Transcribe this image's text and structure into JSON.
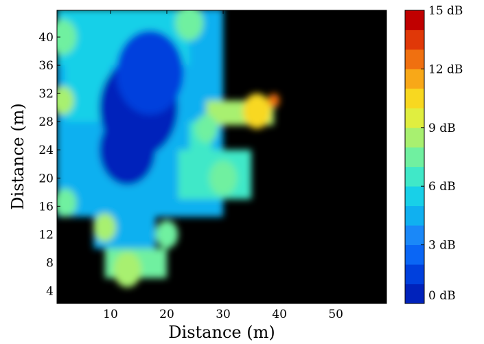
{
  "chart_data": {
    "type": "heatmap",
    "title": "",
    "xlabel": "Distance (m)",
    "ylabel": "Distance (m)",
    "xlim": [
      0.5,
      59
    ],
    "ylim": [
      2.2,
      43.8
    ],
    "xticks": [
      10,
      20,
      30,
      40,
      50
    ],
    "yticks": [
      4,
      8,
      12,
      16,
      20,
      24,
      28,
      32,
      36,
      40
    ],
    "background_color": "#000000",
    "colorbar": {
      "min": 0,
      "max": 15,
      "unit": "dB",
      "levels": 15,
      "tick_values": [
        0,
        3,
        6,
        9,
        12,
        15
      ],
      "tick_labels": [
        "0 dB",
        "3 dB",
        "6 dB",
        "9 dB",
        "12 dB",
        "15 dB"
      ],
      "colors": [
        "#0022bb",
        "#0040dd",
        "#0a66f5",
        "#1a88f8",
        "#10b0f0",
        "#18d0e8",
        "#40e8c8",
        "#70f0a0",
        "#a8f070",
        "#e0ee40",
        "#f8d820",
        "#f8a818",
        "#f07010",
        "#e03808",
        "#c00000"
      ]
    },
    "coverage_regions_m": [
      {
        "x": [
          0.5,
          30
        ],
        "y": [
          14.5,
          44
        ],
        "value": 4
      },
      {
        "x": [
          0.5,
          24
        ],
        "y": [
          36,
          44
        ],
        "value": 5
      },
      {
        "x": [
          2,
          10
        ],
        "y": [
          28,
          40
        ],
        "value": 5
      },
      {
        "x": [
          7,
          18
        ],
        "y": [
          10,
          17
        ],
        "value": 4
      },
      {
        "x": [
          9,
          20
        ],
        "y": [
          5.8,
          10
        ],
        "value": 7
      },
      {
        "x": [
          24,
          28
        ],
        "y": [
          22,
          28
        ],
        "value": 6
      },
      {
        "x": [
          27,
          39
        ],
        "y": [
          27.5,
          31
        ],
        "value": 9
      },
      {
        "x": [
          22,
          35
        ],
        "y": [
          17,
          24
        ],
        "value": 6
      }
    ],
    "intensity_spots_m": [
      {
        "x": 15,
        "y": 30,
        "r": 7,
        "value": 0
      },
      {
        "x": 13,
        "y": 24,
        "r": 5,
        "value": 0
      },
      {
        "x": 17,
        "y": 35,
        "r": 6,
        "value": 1
      },
      {
        "x": 1.5,
        "y": 40,
        "r": 2.5,
        "value": 8
      },
      {
        "x": 24,
        "y": 42,
        "r": 2.5,
        "value": 8
      },
      {
        "x": 1.5,
        "y": 31,
        "r": 2,
        "value": 9
      },
      {
        "x": 36,
        "y": 29.5,
        "r": 2.5,
        "value": 11
      },
      {
        "x": 39,
        "y": 31,
        "r": 1,
        "value": 13
      },
      {
        "x": 27,
        "y": 27,
        "r": 2,
        "value": 8
      },
      {
        "x": 13,
        "y": 7,
        "r": 2.5,
        "value": 9
      },
      {
        "x": 9,
        "y": 13,
        "r": 2,
        "value": 9
      },
      {
        "x": 2,
        "y": 16.5,
        "r": 2,
        "value": 8
      },
      {
        "x": 30,
        "y": 20,
        "r": 2.5,
        "value": 8
      },
      {
        "x": 20,
        "y": 12,
        "r": 2,
        "value": 8
      }
    ]
  }
}
